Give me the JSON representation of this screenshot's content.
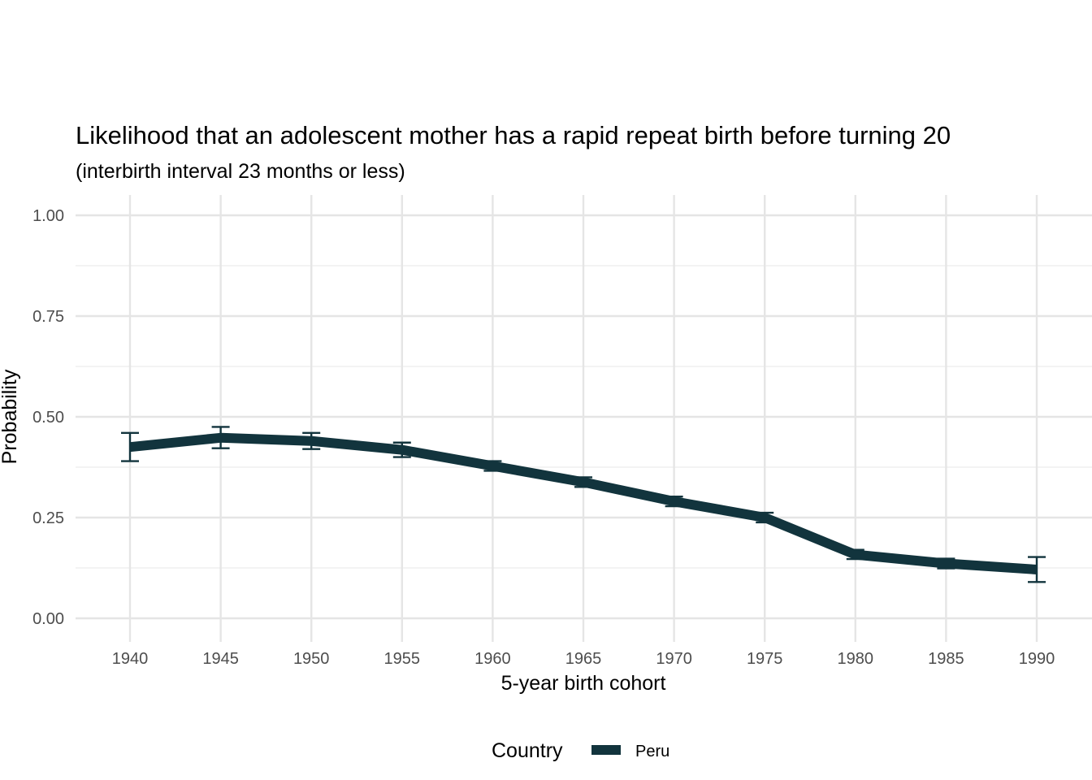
{
  "chart_data": {
    "type": "line",
    "title": "Likelihood that an adolescent mother has a rapid repeat birth before turning 20",
    "subtitle": "(interbirth interval 23 months or less)",
    "xlabel": "5-year birth cohort",
    "ylabel": "Probability",
    "x": [
      1940,
      1945,
      1950,
      1955,
      1960,
      1965,
      1970,
      1975,
      1980,
      1985,
      1990
    ],
    "x_tick_labels": [
      "1940",
      "1945",
      "1950",
      "1955",
      "1960",
      "1965",
      "1970",
      "1975",
      "1980",
      "1985",
      "1990"
    ],
    "y_tick_labels": [
      "0.00",
      "0.25",
      "0.50",
      "0.75",
      "1.00"
    ],
    "y_ticks": [
      0,
      0.25,
      0.5,
      0.75,
      1.0
    ],
    "ylim": [
      0,
      1
    ],
    "xlim": [
      1940,
      1990
    ],
    "grid": true,
    "legend": {
      "title": "Country",
      "position": "bottom"
    },
    "series": [
      {
        "name": "Peru",
        "color": "#12343d",
        "values": [
          0.425,
          0.448,
          0.44,
          0.418,
          0.378,
          0.338,
          0.29,
          0.25,
          0.158,
          0.136,
          0.121
        ],
        "lower": [
          0.39,
          0.422,
          0.42,
          0.4,
          0.366,
          0.326,
          0.278,
          0.238,
          0.147,
          0.124,
          0.09
        ],
        "upper": [
          0.46,
          0.475,
          0.46,
          0.436,
          0.39,
          0.35,
          0.302,
          0.262,
          0.17,
          0.148,
          0.152
        ]
      }
    ]
  }
}
